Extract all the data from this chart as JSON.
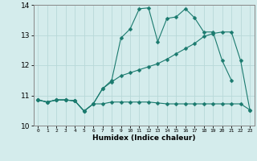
{
  "xlabel": "Humidex (Indice chaleur)",
  "xlim": [
    -0.5,
    23.5
  ],
  "ylim": [
    10,
    14
  ],
  "yticks": [
    10,
    11,
    12,
    13,
    14
  ],
  "xticks": [
    0,
    1,
    2,
    3,
    4,
    5,
    6,
    7,
    8,
    9,
    10,
    11,
    12,
    13,
    14,
    15,
    16,
    17,
    18,
    19,
    20,
    21,
    22,
    23
  ],
  "bg_color": "#d4ecec",
  "grid_color": "#b8d8d8",
  "line_color": "#1a7a6e",
  "line1_y": [
    10.85,
    10.78,
    10.85,
    10.85,
    10.82,
    10.48,
    10.72,
    10.72,
    10.78,
    10.78,
    10.78,
    10.78,
    10.78,
    10.75,
    10.72,
    10.72,
    10.72,
    10.72,
    10.72,
    10.72,
    10.72,
    10.72,
    10.72,
    10.52
  ],
  "line2_y": [
    10.85,
    10.78,
    10.85,
    10.85,
    10.82,
    10.48,
    10.72,
    11.22,
    11.45,
    11.65,
    11.75,
    11.85,
    11.95,
    12.05,
    12.2,
    12.38,
    12.55,
    12.72,
    12.95,
    13.05,
    13.1,
    13.1,
    12.15,
    10.52
  ],
  "line3_y": [
    10.85,
    10.78,
    10.85,
    10.85,
    10.82,
    10.48,
    10.72,
    11.22,
    11.5,
    12.9,
    13.2,
    13.87,
    13.9,
    12.78,
    13.55,
    13.6,
    13.87,
    13.57,
    13.1,
    13.1,
    12.15,
    11.5,
    null,
    null
  ],
  "markersize": 2.5
}
